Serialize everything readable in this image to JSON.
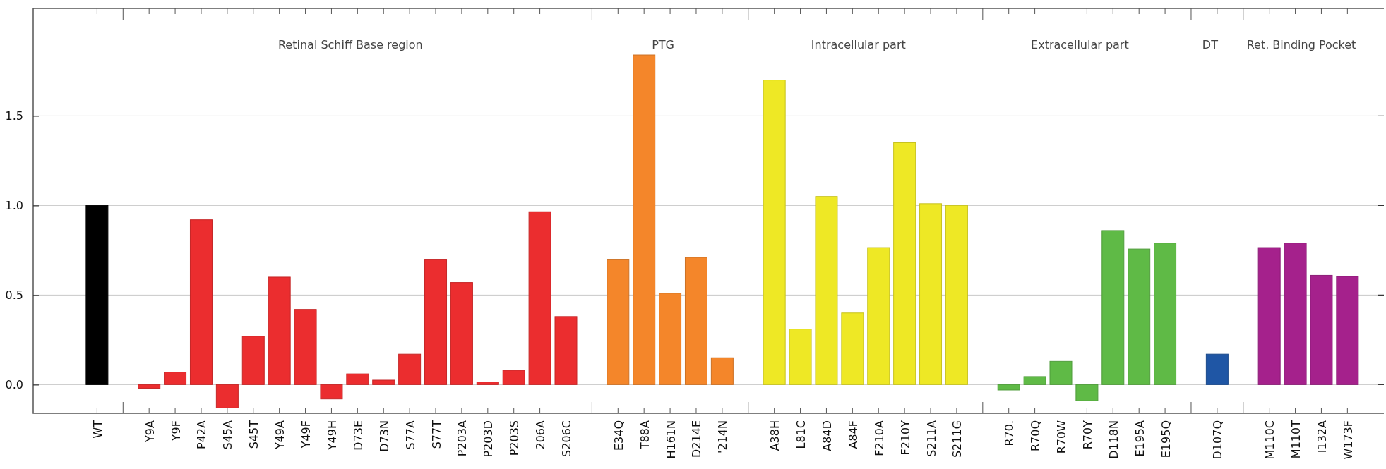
{
  "chart_data": {
    "type": "bar",
    "categories": [
      "WT",
      null,
      "Y9A",
      "Y9F",
      "P42A",
      "S45A",
      "S45T",
      "Y49A",
      "Y49F",
      "Y49H",
      "D73E",
      "D73N",
      "S77A",
      "S77T",
      "P203A",
      "P203D",
      "P203S",
      "206A",
      "S206C",
      null,
      "E34Q",
      "T88A",
      "H161N",
      "D214E",
      "'214N",
      null,
      "A38H",
      "L81C",
      "A84D",
      "A84F",
      "F210A",
      "F210Y",
      "S211A",
      "S211G",
      null,
      "R70.",
      "R70Q",
      "R70W",
      "R70Y",
      "D118N",
      "E195A",
      "E195Q",
      null,
      "D107Q",
      null,
      "M110C",
      "M110T",
      "I132A",
      "W173F"
    ],
    "series": [
      {
        "color": "#000000",
        "values": [
          1.0,
          null,
          null,
          null,
          null,
          null,
          null,
          null,
          null,
          null,
          null,
          null,
          null,
          null,
          null,
          null,
          null,
          null,
          null,
          null,
          null,
          null,
          null,
          null,
          null,
          null,
          null,
          null,
          null,
          null,
          null,
          null,
          null,
          null,
          null,
          null,
          null,
          null,
          null,
          null,
          null,
          null,
          null,
          null,
          null,
          null,
          null,
          null,
          null
        ]
      },
      {
        "color": "#eb2d2f",
        "values": [
          null,
          null,
          -0.02,
          0.07,
          0.92,
          -0.13,
          0.27,
          0.6,
          0.42,
          -0.08,
          0.06,
          0.025,
          0.17,
          0.7,
          0.57,
          0.015,
          0.08,
          0.965,
          0.38,
          null,
          null,
          null,
          null,
          null,
          null,
          null,
          null,
          null,
          null,
          null,
          null,
          null,
          null,
          null,
          null,
          null,
          null,
          null,
          null,
          null,
          null,
          null,
          null,
          null,
          null,
          null,
          null,
          null,
          null
        ]
      },
      {
        "color": "#f4862a",
        "values": [
          null,
          null,
          null,
          null,
          null,
          null,
          null,
          null,
          null,
          null,
          null,
          null,
          null,
          null,
          null,
          null,
          null,
          null,
          null,
          null,
          0.7,
          1.84,
          0.51,
          0.71,
          0.15,
          null,
          null,
          null,
          null,
          null,
          null,
          null,
          null,
          null,
          null,
          null,
          null,
          null,
          null,
          null,
          null,
          null,
          null,
          null,
          null,
          null,
          null,
          null,
          null
        ]
      },
      {
        "color": "#eee825",
        "values": [
          null,
          null,
          null,
          null,
          null,
          null,
          null,
          null,
          null,
          null,
          null,
          null,
          null,
          null,
          null,
          null,
          null,
          null,
          null,
          null,
          null,
          null,
          null,
          null,
          null,
          null,
          1.7,
          0.31,
          1.05,
          0.4,
          0.765,
          1.35,
          1.01,
          1.0,
          null,
          null,
          null,
          null,
          null,
          null,
          null,
          null,
          null,
          null,
          null,
          null,
          null,
          null,
          null
        ]
      },
      {
        "color": "#5fba46",
        "values": [
          null,
          null,
          null,
          null,
          null,
          null,
          null,
          null,
          null,
          null,
          null,
          null,
          null,
          null,
          null,
          null,
          null,
          null,
          null,
          null,
          null,
          null,
          null,
          null,
          null,
          null,
          null,
          null,
          null,
          null,
          null,
          null,
          null,
          null,
          null,
          -0.03,
          0.045,
          0.13,
          -0.09,
          0.86,
          0.757,
          0.79,
          null,
          null,
          null,
          null,
          null,
          null,
          null
        ]
      },
      {
        "color": "#1f56a5",
        "values": [
          null,
          null,
          null,
          null,
          null,
          null,
          null,
          null,
          null,
          null,
          null,
          null,
          null,
          null,
          null,
          null,
          null,
          null,
          null,
          null,
          null,
          null,
          null,
          null,
          null,
          null,
          null,
          null,
          null,
          null,
          null,
          null,
          null,
          null,
          null,
          null,
          null,
          null,
          null,
          null,
          null,
          null,
          null,
          0.17,
          null,
          null,
          null,
          null,
          null
        ]
      },
      {
        "color": "#a5218c",
        "values": [
          null,
          null,
          null,
          null,
          null,
          null,
          null,
          null,
          null,
          null,
          null,
          null,
          null,
          null,
          null,
          null,
          null,
          null,
          null,
          null,
          null,
          null,
          null,
          null,
          null,
          null,
          null,
          null,
          null,
          null,
          null,
          null,
          null,
          null,
          null,
          null,
          null,
          null,
          null,
          null,
          null,
          null,
          null,
          null,
          null,
          0.765,
          0.79,
          0.61,
          0.604
        ]
      }
    ],
    "ylim": [
      -0.16,
      2.1
    ],
    "yticks": [
      {
        "value": 0,
        "label": "0.0"
      },
      0.5,
      {
        "value": 1,
        "label": "1.0"
      },
      1.5
    ],
    "grid": "y",
    "annotations": [
      "Retinal Schiff Base region",
      "PTG",
      "Intracellular part",
      "Extracellular part",
      "DT",
      "Ret. Binding Pocket"
    ]
  }
}
